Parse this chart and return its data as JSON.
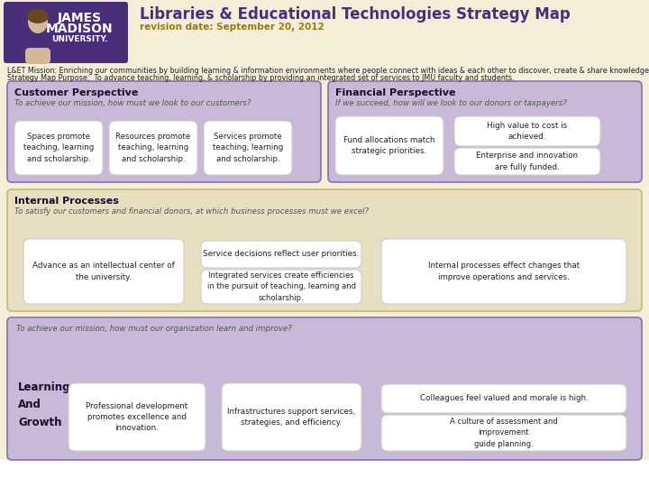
{
  "title": "Libraries & Educational Technologies Strategy Map",
  "subtitle": "revision date: September 20, 2012",
  "mission_line1": "L&ET Mission: Enriching our communities by building learning & information environments where people connect with ideas & each other to discover, create & share knowledge.",
  "mission_line2": "Strategy Map Purpose:  To advance teaching, learning, & scholarship by providing an integrated set of services to JMU faculty and students.",
  "header_bg": "#f5eed8",
  "header_title_color": "#4b2e7a",
  "header_subtitle_color": "#9b7a10",
  "mission_text_color": "#222222",
  "customer_bg": "#c9b8d8",
  "customer_border": "#8870aa",
  "customer_title": "Customer Perspective",
  "customer_italic": "To achieve our mission, how must we look to our customers?",
  "customer_boxes": [
    "Spaces promote\nteaching, learning\nand scholarship.",
    "Resources promote\nteaching, learning\nand scholarship.",
    "Services promote\nteaching, learning\nand scholarship."
  ],
  "financial_bg": "#c9b8d8",
  "financial_border": "#8870aa",
  "financial_title": "Financial Perspective",
  "financial_italic": "If we succeed, how will we look to our donors or taxpayers?",
  "financial_box_left": "Fund allocations match\nstrategic priorities.",
  "financial_box_top_right": "High value to cost is\nachieved.",
  "financial_box_bot_right": "Enterprise and innovation\nare fully funded.",
  "internal_bg": "#e8dfc0",
  "internal_border": "#c8b870",
  "internal_title": "Internal Processes",
  "internal_italic": "To satisfy our customers and financial donors, at which business processes must we excel?",
  "internal_box1": "Advance as an intellectual center of\nthe university.",
  "internal_box2": "Service decisions reflect user priorities.",
  "internal_box3": "Integrated services create efficiencies\nin the pursuit of teaching, learning and\nscholarship.",
  "internal_box4": "Internal processes effect changes that\nimprove operations and services.",
  "learning_bg": "#c9b8d8",
  "learning_border": "#8870aa",
  "learning_italic": "To achieve our mission, how must our organization learn and improve?",
  "learning_label": "Learning\nAnd\nGrowth",
  "learning_box1": "Professional development\npromotes excellence and\ninnovation.",
  "learning_box2": "Infrastructures support services,\nstrategies, and efficiency.",
  "learning_box3": "Colleagues feel valued and morale is high.",
  "learning_box4": "A culture of assessment and\nimprovement\nguide planning.",
  "box_bg": "#ffffff",
  "box_edge": "#cccccc",
  "section_title_color": "#1a0a30",
  "italic_color": "#555555",
  "logo_bg": "#4b2e7a",
  "logo_text": "#ffffff"
}
